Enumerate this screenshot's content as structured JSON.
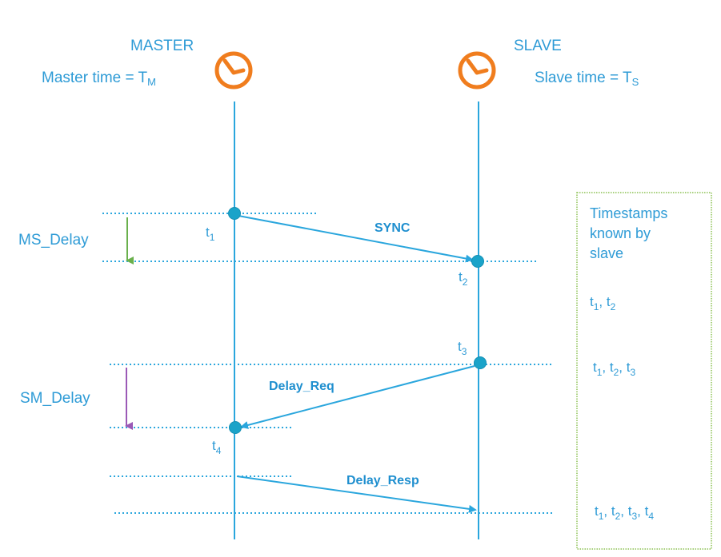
{
  "master": {
    "title": "MASTER",
    "time_label": "Master time = T",
    "time_sub": "M"
  },
  "slave": {
    "title": "SLAVE",
    "time_label": "Slave time = T",
    "time_sub": "S"
  },
  "delays": {
    "ms": "MS_Delay",
    "sm": "SM_Delay"
  },
  "messages": {
    "sync": "SYNC",
    "delay_req": "Delay_Req",
    "delay_resp": "Delay_Resp"
  },
  "timestamps": {
    "t1": {
      "base": "t",
      "sub": "1"
    },
    "t2": {
      "base": "t",
      "sub": "2"
    },
    "t3": {
      "base": "t",
      "sub": "3"
    },
    "t4": {
      "base": "t",
      "sub": "4"
    }
  },
  "known_box": {
    "title_lines": [
      "Timestamps",
      "known by",
      "slave"
    ],
    "rows": [
      [
        "1",
        "2"
      ],
      [
        "1",
        "2",
        "3"
      ],
      [
        "1",
        "2",
        "3",
        "4"
      ]
    ]
  },
  "colors": {
    "line": "#2aa6dd",
    "text": "#2e9bd6",
    "clock": "#f07d1e",
    "dot": "#1aa3c9",
    "ms_arrow": "#6ab04c",
    "sm_arrow": "#9b59b6",
    "box_border": "#8cc152"
  }
}
